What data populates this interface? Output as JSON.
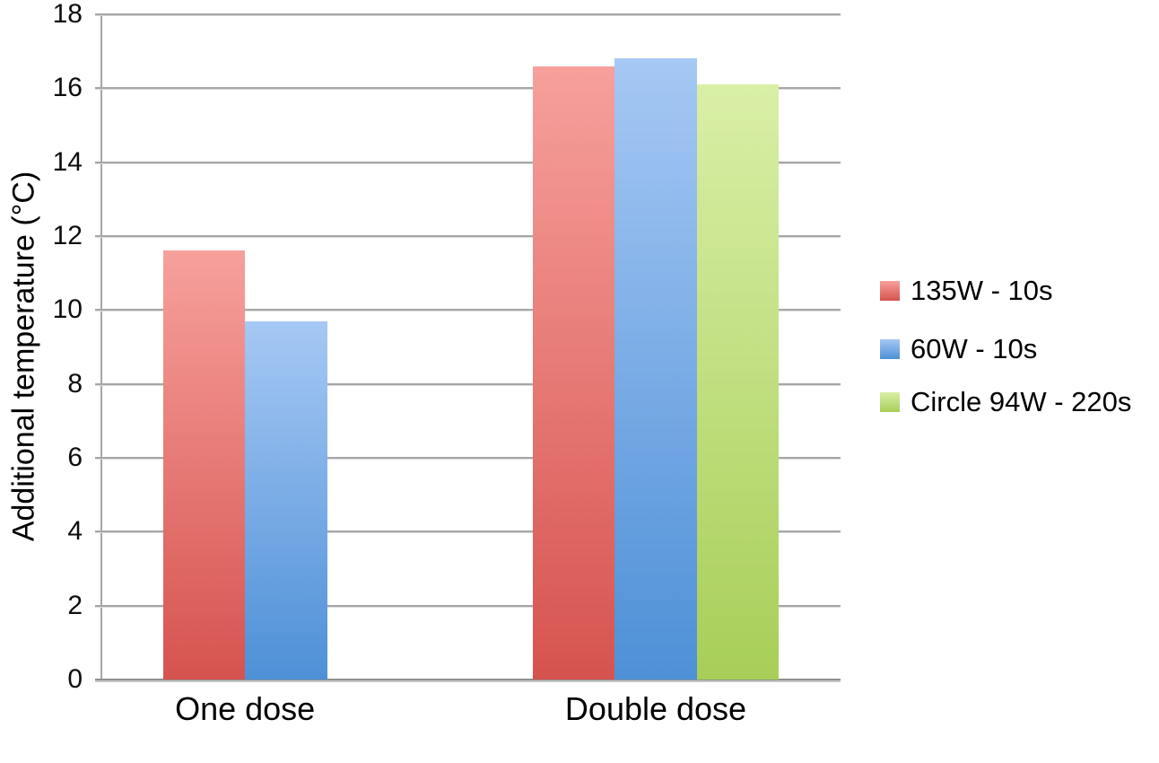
{
  "chart_data": {
    "type": "bar",
    "title": "",
    "xlabel": "",
    "ylabel": "Additional temperature (°C)",
    "categories": [
      "One dose",
      "Double dose"
    ],
    "series": [
      {
        "name": "135W - 10s",
        "color_top": "#F7A09C",
        "color_bottom": "#D6534F",
        "values": [
          11.6,
          16.6
        ]
      },
      {
        "name": "60W - 10s",
        "color_top": "#A6C8F4",
        "color_bottom": "#4E90D7",
        "values": [
          9.7,
          16.8
        ]
      },
      {
        "name": "Circle 94W - 220s",
        "color_top": "#D9EFA7",
        "color_bottom": "#A8CE58",
        "values": [
          null,
          16.1
        ]
      }
    ],
    "ylim": [
      0,
      18
    ],
    "yticks": [
      0,
      2,
      4,
      6,
      8,
      10,
      12,
      14,
      16,
      18
    ],
    "grid": true,
    "gridline_color": "#A6A6A6",
    "legend_position": "right"
  }
}
